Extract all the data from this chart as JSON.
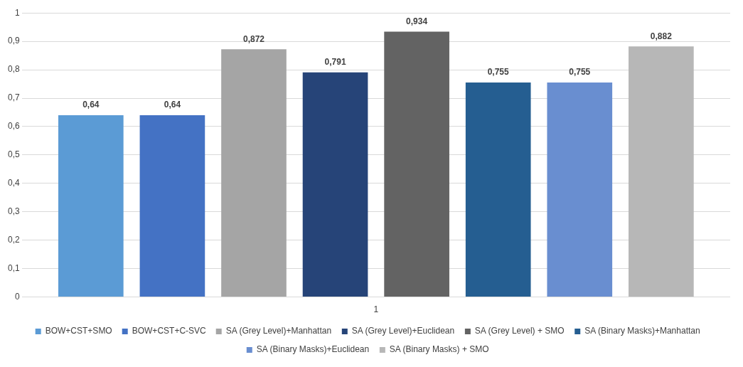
{
  "chart_data": {
    "type": "bar",
    "categories": [
      "1"
    ],
    "series": [
      {
        "name": "BOW+CST+SMO",
        "color": "#5b9bd5",
        "values": [
          0.64
        ],
        "value_labels": [
          "0,64"
        ]
      },
      {
        "name": "BOW+CST+C-SVC",
        "color": "#4472c4",
        "values": [
          0.64
        ],
        "value_labels": [
          "0,64"
        ]
      },
      {
        "name": "SA (Grey Level)+Manhattan",
        "color": "#a5a5a5",
        "values": [
          0.872
        ],
        "value_labels": [
          "0,872"
        ]
      },
      {
        "name": "SA (Grey Level)+Euclidean",
        "color": "#264478",
        "values": [
          0.791
        ],
        "value_labels": [
          "0,791"
        ]
      },
      {
        "name": "SA (Grey Level) + SMO",
        "color": "#636363",
        "values": [
          0.934
        ],
        "value_labels": [
          "0,934"
        ]
      },
      {
        "name": "SA (Binary Masks)+Manhattan",
        "color": "#255e91",
        "values": [
          0.755
        ],
        "value_labels": [
          "0,755"
        ]
      },
      {
        "name": "SA (Binary Masks)+Euclidean",
        "color": "#698ed0",
        "values": [
          0.755
        ],
        "value_labels": [
          "0,755"
        ]
      },
      {
        "name": "SA (Binary Masks) + SMO",
        "color": "#b7b7b7",
        "values": [
          0.882
        ],
        "value_labels": [
          "0,882"
        ]
      }
    ],
    "ylim": [
      0,
      1
    ],
    "yticks": [
      {
        "value": 0,
        "label": "0"
      },
      {
        "value": 0.1,
        "label": "0,1"
      },
      {
        "value": 0.2,
        "label": "0,2"
      },
      {
        "value": 0.3,
        "label": "0,3"
      },
      {
        "value": 0.4,
        "label": "0,4"
      },
      {
        "value": 0.5,
        "label": "0,5"
      },
      {
        "value": 0.6,
        "label": "0,6"
      },
      {
        "value": 0.7,
        "label": "0,7"
      },
      {
        "value": 0.8,
        "label": "0,8"
      },
      {
        "value": 0.9,
        "label": "0,9"
      },
      {
        "value": 1,
        "label": "1"
      }
    ],
    "grid": "y",
    "legend": "bottom"
  }
}
